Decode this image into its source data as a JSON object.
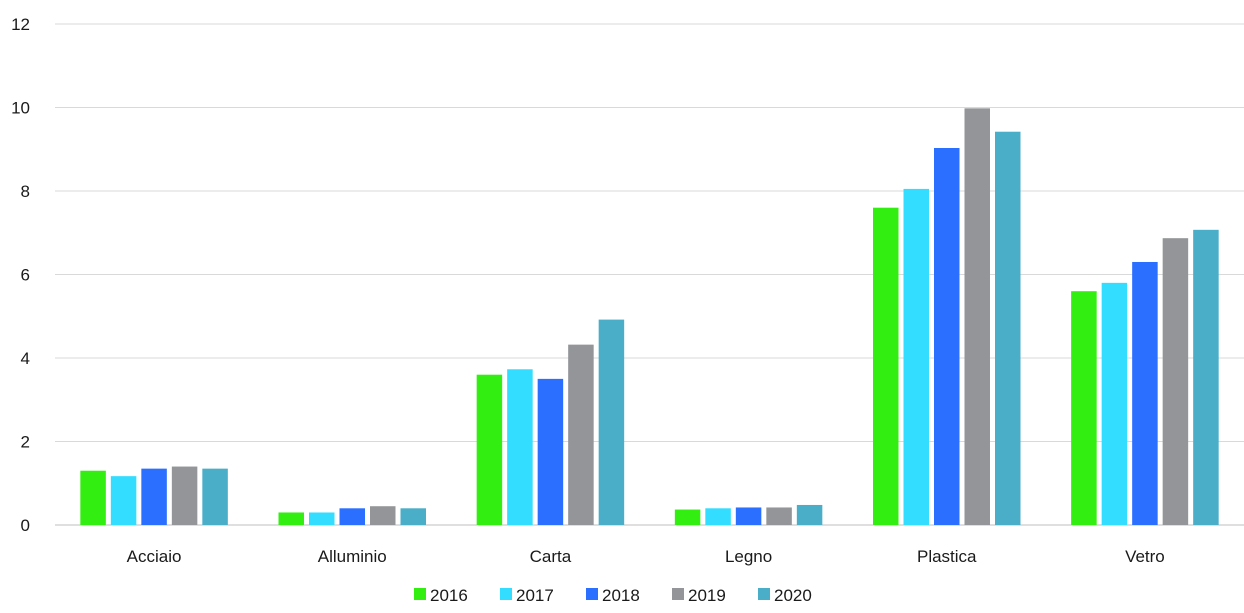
{
  "chart_data": {
    "type": "bar",
    "title": "",
    "xlabel": "",
    "ylabel": "",
    "ylim": [
      0,
      12
    ],
    "yticks": [
      0,
      2,
      4,
      6,
      8,
      10,
      12
    ],
    "grid": true,
    "legend_position": "bottom",
    "categories": [
      "Acciaio",
      "Alluminio",
      "Carta",
      "Legno",
      "Plastica",
      "Vetro"
    ],
    "series": [
      {
        "name": "2016",
        "color": "#33ee11",
        "values": [
          1.3,
          0.3,
          3.6,
          0.37,
          7.6,
          5.6
        ]
      },
      {
        "name": "2017",
        "color": "#33ddff",
        "values": [
          1.17,
          0.3,
          3.73,
          0.4,
          8.05,
          5.8
        ]
      },
      {
        "name": "2018",
        "color": "#2a6fff",
        "values": [
          1.35,
          0.4,
          3.5,
          0.42,
          9.03,
          6.3
        ]
      },
      {
        "name": "2019",
        "color": "#939598",
        "values": [
          1.4,
          0.45,
          4.32,
          0.42,
          9.98,
          6.87
        ]
      },
      {
        "name": "2020",
        "color": "#4aaec8",
        "values": [
          1.35,
          0.4,
          4.92,
          0.48,
          9.42,
          7.07
        ]
      }
    ]
  }
}
